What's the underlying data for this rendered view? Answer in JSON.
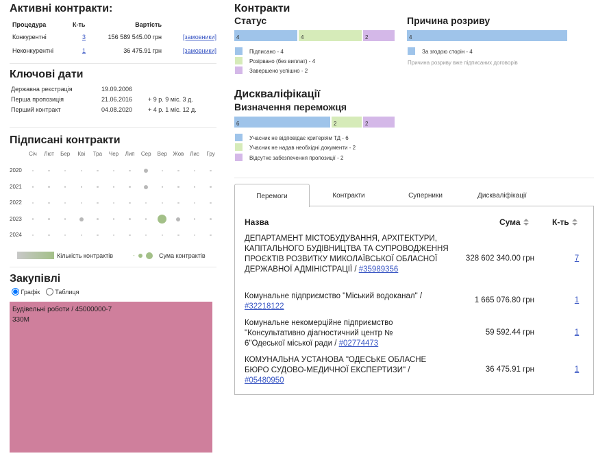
{
  "active": {
    "title": "Активні контракти:",
    "headers": [
      "Процедура",
      "К-ть",
      "Вартість"
    ],
    "rows": [
      {
        "proc": "Конкурентні",
        "count": "3",
        "value": "156 589 545.00 грн",
        "link": "[замовники]"
      },
      {
        "proc": "Неконкурентні",
        "count": "1",
        "value": "36 475.91 грн",
        "link": "[замовники]"
      }
    ]
  },
  "key_dates": {
    "title": "Ключові дати",
    "rows": [
      {
        "label": "Державна реєстрація",
        "date": "19.09.2006",
        "extra": ""
      },
      {
        "label": "Перша пропозиція",
        "date": "21.06.2016",
        "extra": "+ 9 р. 9 міс. 3 д."
      },
      {
        "label": "Перший контракт",
        "date": "04.08.2020",
        "extra": "+ 4 р. 1 міс. 12 д."
      }
    ]
  },
  "signed": {
    "title": "Підписані контракти",
    "months": [
      "Січ",
      "Лют",
      "Бер",
      "Кві",
      "Тра",
      "Чер",
      "Лип",
      "Сер",
      "Вер",
      "Жов",
      "Лис",
      "Гру"
    ],
    "years": [
      "2020",
      "2021",
      "2022",
      "2023",
      "2024"
    ],
    "legend_count": "Кількість контрактів",
    "legend_sum": "Сума контрактів"
  },
  "procurement": {
    "title": "Закупівлі",
    "radio_chart": "Графік",
    "radio_table": "Таблиця",
    "treemap_label": "Будівельні роботи / 45000000-7",
    "treemap_value": "330M",
    "treemap_color": "#cf7f9c"
  },
  "contracts": {
    "title": "Контракти",
    "status_title": "Статус",
    "status_bars": [
      "4",
      "4",
      "2"
    ],
    "status_legend": [
      "Підписано - 4",
      "Розірвано (без виплат) - 4",
      "Завершено успішно - 2"
    ],
    "break_title": "Причина розриву",
    "break_bars": [
      "4"
    ],
    "break_legend": [
      "За згодою сторін - 4"
    ],
    "break_note": "Причина розриву вже підписаних договорів"
  },
  "disq": {
    "title": "Дискваліфікації",
    "sub": "Визначення переможця",
    "bars": [
      "6",
      "2",
      "2"
    ],
    "legend": [
      "Учасник не відповідає критеріям ТД - 6",
      "Учасник не надав необхідні документи - 2",
      "Відсутнє забезпечення пропозиції - 2"
    ]
  },
  "colors": {
    "blue": "#9fc4ea",
    "green": "#d6ebb9",
    "purple": "#d4b8e8",
    "dot_gray": "#c8c8c8",
    "dot_green": "#a3c088"
  },
  "tabs": [
    "Перемоги",
    "Контракти",
    "Суперники",
    "Дискваліфікації"
  ],
  "wins": {
    "headers": {
      "name": "Назва",
      "sum": "Сума",
      "count": "К-ть"
    },
    "rows": [
      {
        "name": "ДЕПАРТАМЕНТ МІСТОБУДУВАННЯ, АРХІТЕКТУРИ, КАПІТАЛЬНОГО БУДІВНИЦТВА ТА СУПРОВОДЖЕННЯ ПРОЄКТІВ РОЗВИТКУ МИКОЛАЇВСЬКОЇ ОБЛАСНОЇ ДЕРЖАВНОЇ АДМІНІСТРАЦІЇ /",
        "code": "#35989356",
        "sum": "328 602 340.00 грн",
        "count": "7"
      },
      {
        "name": "Комунальне підприємство \"Міський водоканал\" /",
        "code": "#32218122",
        "sum": "1 665 076.80 грн",
        "count": "1"
      },
      {
        "name": "Комунальне некомерційне підприємство \"Консультативно діагностичний центр № 6\"Одеської міської ради /",
        "code": "#02774473",
        "sum": "59 592.44 грн",
        "count": "1"
      },
      {
        "name": "КОМУНАЛЬНА УСТАНОВА \"ОДЕСЬКЕ ОБЛАСНЕ БЮРО СУДОВО-МЕДИЧНОЇ ЕКСПЕРТИЗИ\" /",
        "code": "#05480950",
        "sum": "36 475.91 грн",
        "count": "1"
      }
    ]
  }
}
